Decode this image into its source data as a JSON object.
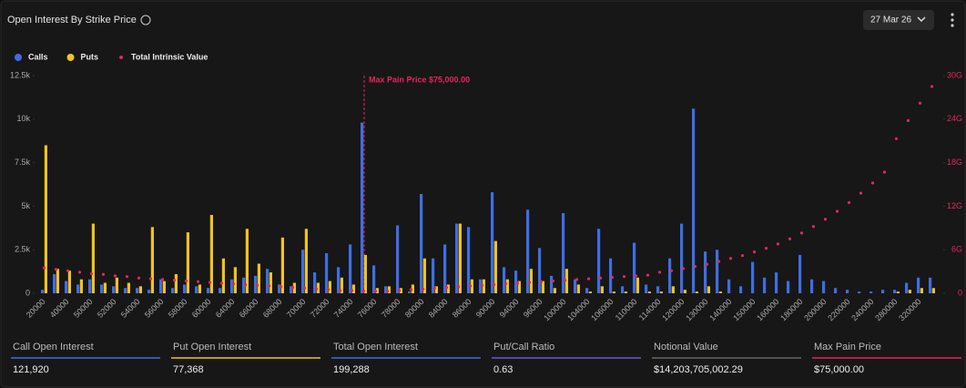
{
  "header": {
    "title": "Open Interest By Strike Price",
    "date": "27 Mar 26"
  },
  "chart_data": {
    "type": "bar",
    "categories": [
      "20000",
      null,
      "40000",
      null,
      "50000",
      null,
      "52000",
      null,
      "54000",
      null,
      "56000",
      null,
      "58000",
      null,
      "60000",
      null,
      "64000",
      null,
      "66000",
      null,
      "68000",
      null,
      "70000",
      null,
      "72000",
      null,
      "74000",
      null,
      "76000",
      null,
      "78000",
      null,
      "80000",
      null,
      "84000",
      null,
      "86000",
      null,
      "90000",
      null,
      "94000",
      null,
      "96000",
      null,
      "100000",
      null,
      "104000",
      null,
      "106000",
      null,
      "110000",
      null,
      "114000",
      null,
      "120000",
      null,
      "130000",
      null,
      "140000",
      null,
      "150000",
      null,
      "160000",
      null,
      "180000",
      null,
      "200000",
      null,
      "220000",
      null,
      "240000",
      null,
      "280000",
      null,
      "320000",
      null
    ],
    "series": [
      {
        "name": "Calls",
        "color": "#3d6ee6",
        "values": [
          200,
          1100,
          700,
          500,
          800,
          500,
          400,
          300,
          300,
          200,
          800,
          300,
          500,
          400,
          300,
          300,
          800,
          900,
          1000,
          1400,
          500,
          400,
          2500,
          1200,
          2300,
          1500,
          2800,
          9800,
          1600,
          400,
          3900,
          100,
          5700,
          2000,
          2800,
          4000,
          3800,
          800,
          5800,
          1500,
          1300,
          4800,
          2600,
          1000,
          4600,
          800,
          300,
          3700,
          2000,
          400,
          2900,
          500,
          400,
          2000,
          4000,
          10600,
          2400,
          2500,
          800,
          400,
          1800,
          900,
          1200,
          700,
          2200,
          800,
          700,
          300,
          200,
          100,
          100,
          200,
          200,
          600,
          900,
          900
        ]
      },
      {
        "name": "Puts",
        "color": "#f2c31c",
        "values": [
          8500,
          1400,
          1300,
          800,
          4000,
          600,
          900,
          600,
          400,
          3800,
          700,
          1100,
          3500,
          500,
          4500,
          2000,
          1500,
          3700,
          1700,
          1200,
          3200,
          600,
          3700,
          600,
          700,
          900,
          500,
          2200,
          300,
          400,
          300,
          500,
          2000,
          400,
          500,
          4000,
          800,
          800,
          3000,
          800,
          700,
          1400,
          700,
          300,
          1400,
          500,
          100,
          400,
          100,
          100,
          900,
          100,
          100,
          400,
          200,
          100,
          400,
          100,
          0,
          0,
          0,
          0,
          0,
          0,
          0,
          0,
          0,
          0,
          0,
          0,
          0,
          0,
          100,
          200,
          300,
          300
        ]
      },
      {
        "name": "Total Intrinsic Value",
        "color": "#e8245c",
        "axis": "y2",
        "values": [
          3.5,
          3.3,
          3.1,
          2.9,
          2.7,
          2.6,
          2.4,
          2.3,
          2.1,
          2.0,
          1.9,
          1.8,
          1.7,
          1.6,
          1.5,
          1.4,
          1.3,
          1.2,
          1.1,
          1.0,
          0.9,
          0.8,
          0.7,
          0.6,
          0.5,
          0.4,
          0.4,
          0.3,
          0.3,
          0.3,
          0.4,
          0.5,
          0.6,
          0.7,
          0.8,
          0.9,
          1.0,
          1.1,
          1.2,
          1.3,
          1.4,
          1.5,
          1.6,
          1.7,
          1.8,
          1.9,
          2.0,
          2.1,
          2.2,
          2.3,
          2.4,
          2.5,
          2.9,
          3.1,
          3.4,
          3.7,
          4.0,
          4.4,
          4.8,
          5.2,
          5.7,
          6.2,
          6.8,
          7.5,
          8.3,
          9.2,
          10.2,
          11.3,
          12.5,
          13.8,
          15.2,
          16.7,
          21.3,
          23.8,
          26.2,
          28.5
        ]
      }
    ],
    "ylim": [
      0,
      12500
    ],
    "yticks": [
      0,
      {
        "value": 2500,
        "label": "2.5k"
      },
      {
        "value": 5000,
        "label": "5k"
      },
      {
        "value": 7500,
        "label": "7.5k"
      },
      {
        "value": 10000,
        "label": "10k"
      },
      {
        "value": 12500,
        "label": "12.5k"
      }
    ],
    "y2lim": [
      0,
      30
    ],
    "y2ticks": [
      0,
      {
        "value": 6,
        "label": "6G"
      },
      {
        "value": 12,
        "label": "12G"
      },
      {
        "value": 18,
        "label": "18G"
      },
      {
        "value": 24,
        "label": "24G"
      },
      {
        "value": 30,
        "label": "30G"
      }
    ],
    "annotation": "Max Pain Price $75,000.00",
    "legend": "top-left"
  },
  "stats": [
    {
      "label": "Call Open Interest",
      "value": "121,920",
      "color": "#3d6ee6"
    },
    {
      "label": "Put Open Interest",
      "value": "77,368",
      "color": "#f2c31c"
    },
    {
      "label": "Total Open Interest",
      "value": "199,288",
      "color": "#3d6ee6"
    },
    {
      "label": "Put/Call Ratio",
      "value": "0.63",
      "color": "#6a57d8"
    },
    {
      "label": "Notional Value",
      "value": "$14,203,705,002.29",
      "color": "#666666"
    },
    {
      "label": "Max Pain Price",
      "value": "$75,000.00",
      "color": "#e8245c"
    }
  ]
}
